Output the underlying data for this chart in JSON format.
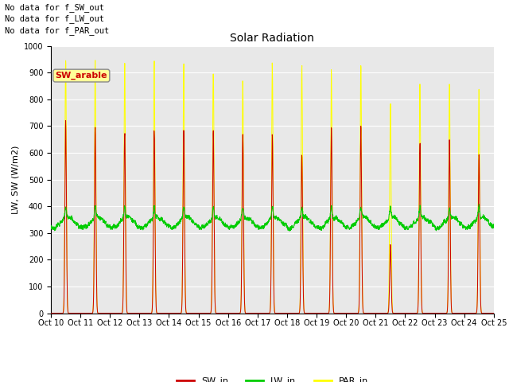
{
  "title": "Solar Radiation",
  "ylabel": "LW, SW (W/m2)",
  "ylim": [
    0,
    1000
  ],
  "bg_color": "#e8e8e8",
  "text_annotations": [
    "No data for f_SW_out",
    "No data for f_LW_out",
    "No data for f_PAR_out"
  ],
  "tooltip_label": "SW_arable",
  "tooltip_bg": "#ffff99",
  "tooltip_fg": "#cc0000",
  "x_tick_labels": [
    "Oct 10",
    "Oct 11",
    "Oct 12",
    "Oct 13",
    "Oct 14",
    "Oct 15",
    "Oct 16",
    "Oct 17",
    "Oct 18",
    "Oct 19",
    "Oct 20",
    "Oct 21",
    "Oct 22",
    "Oct 23",
    "Oct 24",
    "Oct 25"
  ],
  "SW_in_color": "#cc0000",
  "LW_in_color": "#00cc00",
  "PAR_in_color": "#ffff00",
  "legend_SW": "SW_in",
  "legend_LW": "LW_in",
  "legend_PAR": "PAR_in",
  "par_peaks": [
    955,
    930,
    920,
    920,
    920,
    910,
    855,
    920,
    925,
    920,
    940,
    780,
    860,
    855,
    820,
    0
  ],
  "sw_peaks": [
    710,
    695,
    690,
    685,
    685,
    675,
    665,
    670,
    605,
    695,
    700,
    250,
    635,
    630,
    605,
    0
  ],
  "n_days": 15,
  "pts_per_day": 144
}
